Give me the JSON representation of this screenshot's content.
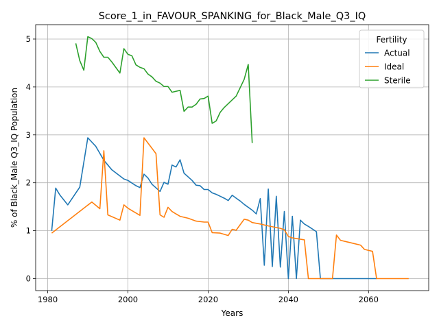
{
  "chart_data": {
    "type": "line",
    "title": "Score_1_in_FAVOUR_SPANKING_for_Black_Male_Q3_IQ",
    "xlabel": "Years",
    "ylabel": "% of Black_Male Q3_IQ Population",
    "xlim": [
      1977,
      2075
    ],
    "ylim": [
      -0.25,
      5.3
    ],
    "xticks": [
      1980,
      2000,
      2020,
      2040,
      2060
    ],
    "yticks": [
      0,
      1,
      2,
      3,
      4,
      5
    ],
    "grid": true,
    "legend": {
      "title": "Fertility",
      "position": "top-right"
    },
    "series": [
      {
        "name": "Actual",
        "color": "#1f77b4",
        "points": [
          [
            1981,
            1.0
          ],
          [
            1982,
            1.89
          ],
          [
            1983,
            1.75
          ],
          [
            1985,
            1.54
          ],
          [
            1988,
            1.91
          ],
          [
            1990,
            2.94
          ],
          [
            1992,
            2.76
          ],
          [
            1994,
            2.47
          ],
          [
            1996,
            2.27
          ],
          [
            1999,
            2.08
          ],
          [
            2000,
            2.05
          ],
          [
            2002,
            1.94
          ],
          [
            2003,
            1.9
          ],
          [
            2004,
            2.18
          ],
          [
            2005,
            2.1
          ],
          [
            2006,
            1.97
          ],
          [
            2008,
            1.82
          ],
          [
            2009,
            2.01
          ],
          [
            2010,
            1.97
          ],
          [
            2011,
            2.37
          ],
          [
            2012,
            2.33
          ],
          [
            2013,
            2.48
          ],
          [
            2014,
            2.2
          ],
          [
            2016,
            2.05
          ],
          [
            2017,
            1.95
          ],
          [
            2018,
            1.94
          ],
          [
            2019,
            1.86
          ],
          [
            2020,
            1.86
          ],
          [
            2021,
            1.79
          ],
          [
            2022,
            1.76
          ],
          [
            2023,
            1.72
          ],
          [
            2024,
            1.68
          ],
          [
            2025,
            1.63
          ],
          [
            2026,
            1.74
          ],
          [
            2027,
            1.68
          ],
          [
            2028,
            1.62
          ],
          [
            2029,
            1.55
          ],
          [
            2031,
            1.43
          ],
          [
            2032,
            1.35
          ],
          [
            2033,
            1.67
          ],
          [
            2034,
            0.28
          ],
          [
            2035,
            1.87
          ],
          [
            2036,
            0.25
          ],
          [
            2037,
            1.72
          ],
          [
            2038,
            0.24
          ],
          [
            2039,
            1.4
          ],
          [
            2040,
            0.0
          ],
          [
            2041,
            1.3
          ],
          [
            2042,
            0.0
          ],
          [
            2043,
            1.22
          ],
          [
            2044,
            1.14
          ],
          [
            2045,
            1.09
          ],
          [
            2047,
            0.98
          ],
          [
            2048,
            0.0
          ],
          [
            2060,
            0.0
          ],
          [
            2062,
            0.0
          ]
        ]
      },
      {
        "name": "Ideal",
        "color": "#ff7f0e",
        "points": [
          [
            1981,
            0.95
          ],
          [
            1991,
            1.6
          ],
          [
            1993,
            1.46
          ],
          [
            1994,
            2.67
          ],
          [
            1995,
            1.33
          ],
          [
            1998,
            1.22
          ],
          [
            1999,
            1.54
          ],
          [
            2000,
            1.47
          ],
          [
            2003,
            1.32
          ],
          [
            2004,
            2.94
          ],
          [
            2007,
            2.61
          ],
          [
            2008,
            1.33
          ],
          [
            2009,
            1.28
          ],
          [
            2010,
            1.49
          ],
          [
            2011,
            1.4
          ],
          [
            2013,
            1.3
          ],
          [
            2015,
            1.26
          ],
          [
            2017,
            1.2
          ],
          [
            2019,
            1.18
          ],
          [
            2020,
            1.18
          ],
          [
            2021,
            0.96
          ],
          [
            2023,
            0.95
          ],
          [
            2025,
            0.9
          ],
          [
            2026,
            1.03
          ],
          [
            2027,
            1.01
          ],
          [
            2029,
            1.24
          ],
          [
            2030,
            1.22
          ],
          [
            2031,
            1.17
          ],
          [
            2033,
            1.14
          ],
          [
            2035,
            1.1
          ],
          [
            2038,
            1.05
          ],
          [
            2039,
            1.02
          ],
          [
            2040,
            0.88
          ],
          [
            2041,
            0.85
          ],
          [
            2044,
            0.81
          ],
          [
            2045,
            0.0
          ],
          [
            2051,
            0.0
          ],
          [
            2052,
            0.91
          ],
          [
            2053,
            0.8
          ],
          [
            2058,
            0.7
          ],
          [
            2059,
            0.61
          ],
          [
            2061,
            0.57
          ],
          [
            2062,
            0.0
          ],
          [
            2070,
            0.0
          ]
        ]
      },
      {
        "name": "Sterile",
        "color": "#2ca02c",
        "points": [
          [
            1987,
            4.91
          ],
          [
            1988,
            4.55
          ],
          [
            1989,
            4.35
          ],
          [
            1990,
            5.05
          ],
          [
            1991,
            5.01
          ],
          [
            1992,
            4.93
          ],
          [
            1993,
            4.74
          ],
          [
            1994,
            4.62
          ],
          [
            1995,
            4.62
          ],
          [
            1996,
            4.52
          ],
          [
            1998,
            4.29
          ],
          [
            1999,
            4.8
          ],
          [
            2000,
            4.68
          ],
          [
            2001,
            4.65
          ],
          [
            2002,
            4.46
          ],
          [
            2003,
            4.41
          ],
          [
            2004,
            4.38
          ],
          [
            2005,
            4.27
          ],
          [
            2006,
            4.21
          ],
          [
            2007,
            4.12
          ],
          [
            2008,
            4.08
          ],
          [
            2009,
            4.01
          ],
          [
            2010,
            4.01
          ],
          [
            2011,
            3.89
          ],
          [
            2013,
            3.93
          ],
          [
            2014,
            3.49
          ],
          [
            2015,
            3.58
          ],
          [
            2016,
            3.58
          ],
          [
            2017,
            3.64
          ],
          [
            2018,
            3.75
          ],
          [
            2019,
            3.76
          ],
          [
            2020,
            3.81
          ],
          [
            2021,
            3.24
          ],
          [
            2022,
            3.29
          ],
          [
            2023,
            3.47
          ],
          [
            2024,
            3.57
          ],
          [
            2027,
            3.81
          ],
          [
            2029,
            4.16
          ],
          [
            2030,
            4.47
          ],
          [
            2031,
            2.83
          ]
        ]
      }
    ]
  }
}
